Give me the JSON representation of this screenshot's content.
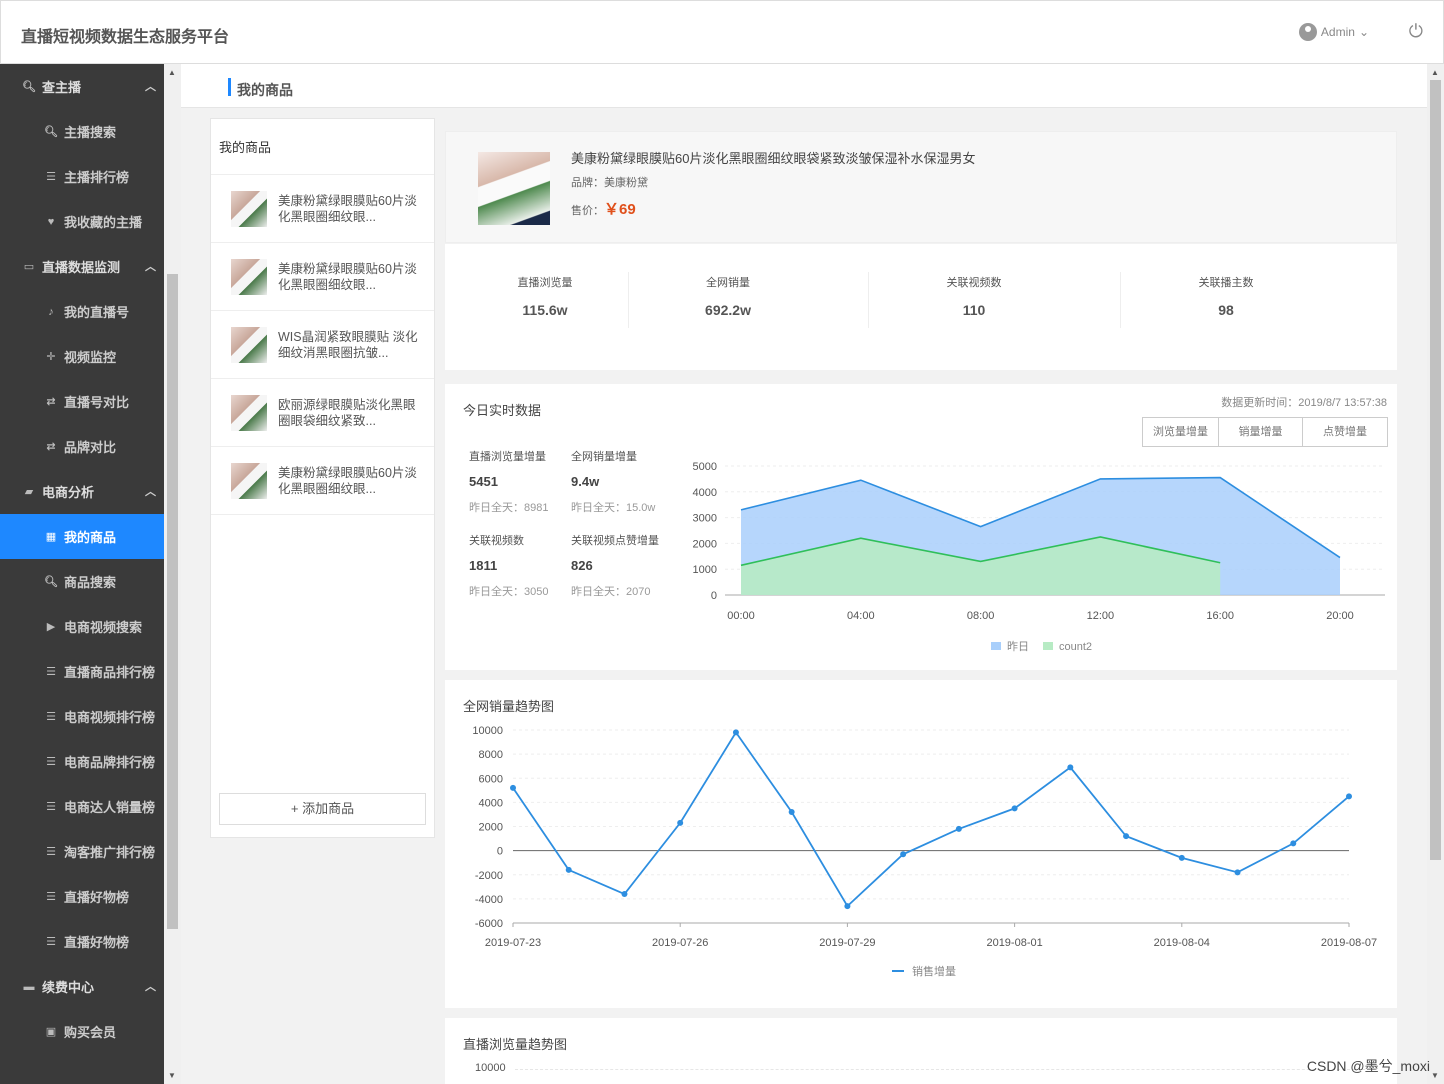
{
  "header": {
    "app_title": "直播短视频数据生态服务平台",
    "user": "Admin"
  },
  "sidebar": {
    "groups": [
      {
        "label": "查主播",
        "icon": "search-icon",
        "items": [
          {
            "label": "主播搜索",
            "icon": "search-icon"
          },
          {
            "label": "主播排行榜",
            "icon": "list-icon"
          },
          {
            "label": "我收藏的主播",
            "icon": "heart-icon"
          }
        ]
      },
      {
        "label": "直播数据监测",
        "icon": "monitor-icon",
        "items": [
          {
            "label": "我的直播号",
            "icon": "mic-icon"
          },
          {
            "label": "视频监控",
            "icon": "crosshair-icon"
          },
          {
            "label": "直播号对比",
            "icon": "swap-icon"
          },
          {
            "label": "品牌对比",
            "icon": "swap-icon"
          }
        ]
      },
      {
        "label": "电商分析",
        "icon": "bag-icon",
        "items": [
          {
            "label": "我的商品",
            "icon": "grid-icon",
            "active": true
          },
          {
            "label": "商品搜索",
            "icon": "search-icon"
          },
          {
            "label": "电商视频搜索",
            "icon": "play-icon"
          },
          {
            "label": "直播商品排行榜",
            "icon": "list-icon"
          },
          {
            "label": "电商视频排行榜",
            "icon": "list-icon"
          },
          {
            "label": "电商品牌排行榜",
            "icon": "list-icon"
          },
          {
            "label": "电商达人销量榜",
            "icon": "list-icon"
          },
          {
            "label": "淘客推广排行榜",
            "icon": "list-icon"
          },
          {
            "label": "直播好物榜",
            "icon": "list-icon"
          },
          {
            "label": "直播好物榜",
            "icon": "list-icon"
          }
        ]
      },
      {
        "label": "续费中心",
        "icon": "card-icon",
        "items": [
          {
            "label": "购买会员",
            "icon": "vip-icon"
          }
        ]
      }
    ]
  },
  "page": {
    "title": "我的商品"
  },
  "product_list": {
    "title": "我的商品",
    "items": [
      "美康粉黛绿眼膜贴60片淡化黑眼圈细纹眼...",
      "美康粉黛绿眼膜贴60片淡化黑眼圈细纹眼...",
      "WIS晶润紧致眼膜贴 淡化细纹消黑眼圈抗皱...",
      "欧丽源绿眼膜贴淡化黑眼圈眼袋细纹紧致...",
      "美康粉黛绿眼膜贴60片淡化黑眼圈细纹眼..."
    ],
    "add_button": "+ 添加商品"
  },
  "detail": {
    "title": "美康粉黛绿眼膜贴60片淡化黑眼圈细纹眼袋紧致淡皱保湿补水保湿男女",
    "brand": "品牌：美康粉黛",
    "price_label": "售价：",
    "price": "￥69"
  },
  "stats": [
    {
      "label": "直播浏览量",
      "value": "115.6w"
    },
    {
      "label": "全网销量",
      "value": "692.2w"
    },
    {
      "label": "关联视频数",
      "value": "110"
    },
    {
      "label": "关联播主数",
      "value": "98"
    }
  ],
  "realtime": {
    "title": "今日实时数据",
    "updated": "数据更新时间：2019/8/7 13:57:38",
    "buttons": [
      "浏览量增量",
      "销量增量",
      "点赞增量"
    ],
    "kpis": [
      {
        "label": "直播浏览量增量",
        "value": "5451",
        "prev": "昨日全天：8981"
      },
      {
        "label": "全网销量增量",
        "value": "9.4w",
        "prev": "昨日全天：15.0w"
      },
      {
        "label": "关联视频数",
        "value": "1811",
        "prev": "昨日全天：3050"
      },
      {
        "label": "关联视频点赞增量",
        "value": "826",
        "prev": "昨日全天：2070"
      }
    ]
  },
  "sales_trend": {
    "title": "全网销量趋势图"
  },
  "views_trend": {
    "title": "直播浏览量趋势图",
    "first_tick": "10000"
  },
  "watermark": "CSDN @墨兮_moxi",
  "colors": {
    "accent": "#1e88ff",
    "price": "#e0501b",
    "area_blue": "#a9cffb",
    "area_green": "#b7ebc4",
    "line_blue": "#2d8ee0",
    "line_green": "#2fbf5a"
  },
  "chart_data": [
    {
      "type": "area",
      "x": [
        "00:00",
        "04:00",
        "08:00",
        "12:00",
        "16:00",
        "20:00"
      ],
      "ylim": [
        0,
        5000
      ],
      "yticks": [
        0,
        1000,
        2000,
        3000,
        4000,
        5000
      ],
      "series": [
        {
          "name": "昨日",
          "values": [
            3300,
            4450,
            2650,
            4500,
            4550,
            1450
          ]
        },
        {
          "name": "count2",
          "values": [
            1150,
            2200,
            1300,
            2250,
            1250,
            null
          ]
        }
      ],
      "legend": "bottom"
    },
    {
      "type": "line",
      "title": "全网销量趋势图",
      "x": [
        "2019-07-23",
        "2019-07-24",
        "2019-07-25",
        "2019-07-26",
        "2019-07-27",
        "2019-07-28",
        "2019-07-29",
        "2019-07-30",
        "2019-07-31",
        "2019-08-01",
        "2019-08-02",
        "2019-08-03",
        "2019-08-04",
        "2019-08-05",
        "2019-08-06",
        "2019-08-07"
      ],
      "xticks": [
        "2019-07-23",
        "2019-07-26",
        "2019-07-29",
        "2019-08-01",
        "2019-08-04",
        "2019-08-07"
      ],
      "ylim": [
        -6000,
        10000
      ],
      "yticks": [
        -6000,
        -4000,
        -2000,
        0,
        2000,
        4000,
        6000,
        8000,
        10000
      ],
      "series": [
        {
          "name": "销售增量",
          "values": [
            5200,
            -1600,
            -3600,
            2300,
            9800,
            3200,
            -4600,
            -300,
            1800,
            3500,
            6900,
            1200,
            -600,
            -1800,
            600,
            4500
          ]
        }
      ],
      "legend": "bottom"
    }
  ]
}
